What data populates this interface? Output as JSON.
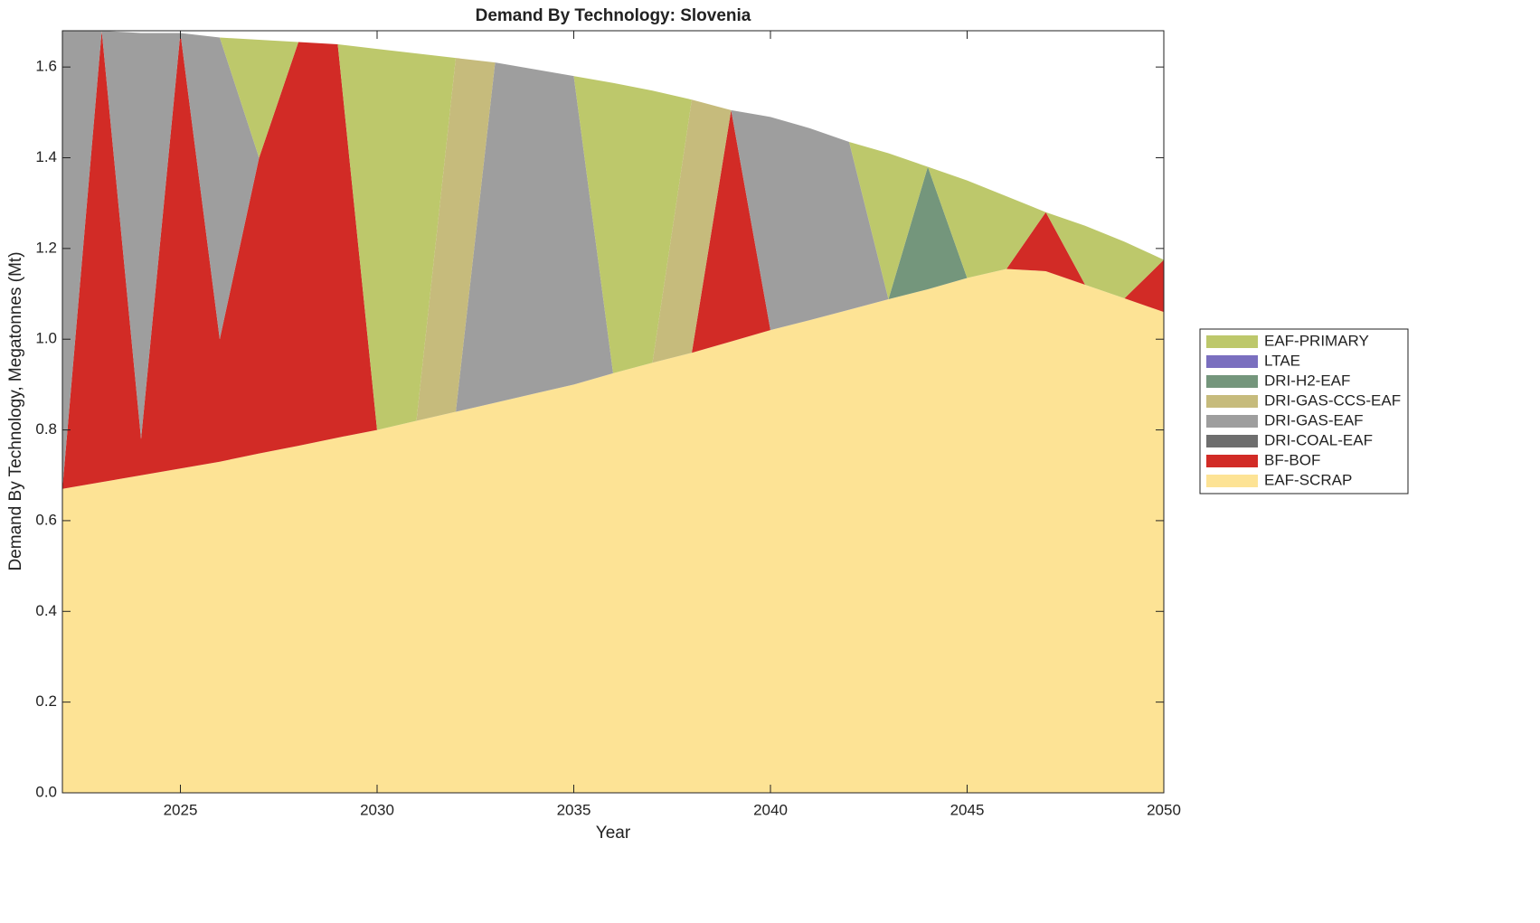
{
  "chart_data": {
    "type": "stacked_area",
    "title": "Demand By Technology: Slovenia",
    "x_label": "Year",
    "y_label": "Demand By Technology, Megatonnes (Mt)",
    "x": [
      2022,
      2023,
      2024,
      2025,
      2026,
      2027,
      2028,
      2029,
      2030,
      2031,
      2032,
      2033,
      2034,
      2035,
      2036,
      2037,
      2038,
      2039,
      2040,
      2041,
      2042,
      2043,
      2044,
      2045,
      2046,
      2047,
      2048,
      2049,
      2050
    ],
    "xlim": [
      2022,
      2050
    ],
    "xticks": [
      2025,
      2030,
      2035,
      2040,
      2045,
      2050
    ],
    "ylim": [
      0,
      1.68
    ],
    "yticks": [
      {
        "value": 0,
        "label": "0.0"
      },
      0.2,
      0.4,
      0.6,
      0.8,
      {
        "value": 1,
        "label": "1.0"
      },
      1.2,
      1.4,
      1.6
    ],
    "legend": "right",
    "series": [
      {
        "name": "EAF-PRIMARY",
        "color": "#bdc86b",
        "values": [
          0,
          0,
          0,
          0,
          0,
          0.26,
          0,
          0,
          0.84,
          0.81,
          0,
          0,
          0,
          0,
          0.64,
          0.6,
          0,
          0,
          0,
          0,
          0,
          0.322,
          0,
          0.215,
          0.16,
          0,
          0.13,
          0.125,
          0
        ]
      },
      {
        "name": "LTAE",
        "color": "#7a6fbf",
        "values": [
          0,
          0,
          0,
          0,
          0,
          0,
          0,
          0,
          0,
          0,
          0,
          0,
          0,
          0,
          0,
          0,
          0,
          0,
          0,
          0,
          0,
          0,
          0,
          0,
          0,
          0,
          0,
          0,
          0
        ]
      },
      {
        "name": "DRI-H2-EAF",
        "color": "#74967c",
        "values": [
          0,
          0,
          0,
          0,
          0,
          0,
          0,
          0,
          0,
          0,
          0,
          0,
          0,
          0,
          0,
          0,
          0,
          0,
          0,
          0,
          0,
          0,
          0.27,
          0,
          0,
          0,
          0,
          0,
          0
        ]
      },
      {
        "name": "DRI-GAS-CCS-EAF",
        "color": "#c6bb7c",
        "values": [
          0,
          0,
          0,
          0,
          0,
          0,
          0,
          0,
          0,
          0,
          0.78,
          0,
          0,
          0,
          0,
          0,
          0.558,
          0,
          0,
          0,
          0,
          0,
          0,
          0,
          0,
          0,
          0,
          0,
          0
        ]
      },
      {
        "name": "DRI-GAS-EAF",
        "color": "#9e9e9e",
        "values": [
          1.01,
          0,
          0.895,
          0,
          0.665,
          0,
          0,
          0,
          0,
          0,
          0,
          0.75,
          0.715,
          0.68,
          0,
          0,
          0,
          0,
          0.47,
          0.423,
          0.37,
          0,
          0,
          0,
          0,
          0,
          0,
          0,
          0
        ]
      },
      {
        "name": "DRI-COAL-EAF",
        "color": "#6e6e6e",
        "values": [
          0,
          0,
          0,
          0,
          0,
          0,
          0,
          0,
          0,
          0,
          0,
          0,
          0,
          0,
          0,
          0,
          0,
          0,
          0,
          0,
          0,
          0,
          0,
          0,
          0,
          0,
          0,
          0,
          0
        ]
      },
      {
        "name": "BF-BOF",
        "color": "#d22b26",
        "values": [
          0,
          0.995,
          0.08,
          0.96,
          0.27,
          0.652,
          0.89,
          0.867,
          0,
          0,
          0,
          0,
          0,
          0,
          0,
          0,
          0,
          0.51,
          0,
          0,
          0,
          0,
          0,
          0,
          0,
          0.13,
          0,
          0,
          0.115
        ]
      },
      {
        "name": "EAF-SCRAP",
        "color": "#fde395",
        "values": [
          0.67,
          0.685,
          0.7,
          0.715,
          0.73,
          0.748,
          0.765,
          0.783,
          0.8,
          0.82,
          0.84,
          0.86,
          0.88,
          0.9,
          0.925,
          0.948,
          0.97,
          0.995,
          1.02,
          1.042,
          1.065,
          1.088,
          1.11,
          1.135,
          1.155,
          1.15,
          1.12,
          1.09,
          1.06
        ]
      }
    ]
  }
}
